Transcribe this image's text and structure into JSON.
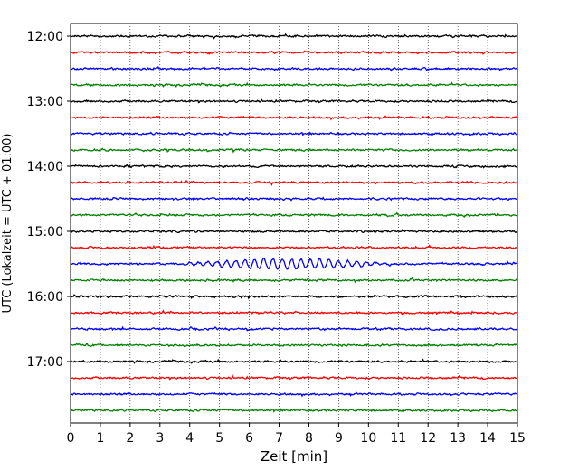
{
  "chart_data": {
    "type": "line",
    "title": "",
    "xlabel": "Zeit  [min]",
    "ylabel": "UTC (Lokalzeit = UTC + 01:00)",
    "xlim": [
      0,
      15
    ],
    "x_ticks": [
      "0",
      "1",
      "2",
      "3",
      "4",
      "5",
      "6",
      "7",
      "8",
      "9",
      "10",
      "11",
      "12",
      "13",
      "14",
      "15"
    ],
    "y_ticks": [
      "12:00",
      "13:00",
      "14:00",
      "15:00",
      "16:00",
      "17:00"
    ],
    "grid": "vertical dotted",
    "legend": "none",
    "trace_colors": [
      "#000000",
      "#ff0000",
      "#0000ff",
      "#008000"
    ],
    "trace_start_times": [
      "12:00",
      "12:15",
      "12:30",
      "12:45",
      "13:00",
      "13:15",
      "13:30",
      "13:45",
      "14:00",
      "14:15",
      "14:30",
      "14:45",
      "15:00",
      "15:15",
      "15:30",
      "15:45",
      "16:00",
      "16:15",
      "16:30",
      "16:45",
      "17:00",
      "17:15",
      "17:30",
      "17:45"
    ],
    "series": [
      {
        "start": "15:30",
        "event_window_min": [
          3.5,
          11.0
        ],
        "note": ""
      }
    ]
  }
}
